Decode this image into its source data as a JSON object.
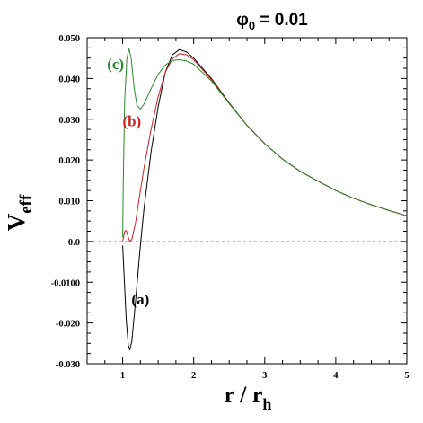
{
  "chart_data": {
    "type": "line",
    "title": {
      "symbol": "φ",
      "sub": "0",
      "rest": " = 0.01"
    },
    "xlabel": {
      "main": "r / r",
      "sub": "h"
    },
    "ylabel": {
      "main": "V",
      "sub": "eff"
    },
    "xlim": [
      0.5,
      5.0
    ],
    "ylim": [
      -0.03,
      0.05
    ],
    "x_ticks": [
      {
        "v": 1,
        "label": "1"
      },
      {
        "v": 2,
        "label": "2"
      },
      {
        "v": 3,
        "label": "3"
      },
      {
        "v": 4,
        "label": "4"
      },
      {
        "v": 5,
        "label": "5"
      }
    ],
    "y_ticks": [
      {
        "v": 0.05,
        "label": "0.050"
      },
      {
        "v": 0.04,
        "label": "0.040"
      },
      {
        "v": 0.03,
        "label": "0.030"
      },
      {
        "v": 0.02,
        "label": "0.020"
      },
      {
        "v": 0.01,
        "label": "0.010"
      },
      {
        "v": 0.0,
        "label": "0.0"
      },
      {
        "v": -0.01,
        "label": "-0.0100"
      },
      {
        "v": -0.02,
        "label": "-0.020"
      },
      {
        "v": -0.03,
        "label": "-0.030"
      }
    ],
    "zero_line": true,
    "series": [
      {
        "name": "(a)",
        "color": "#000000",
        "label_at": [
          1.25,
          -0.0155
        ],
        "points": [
          [
            1.0,
            -0.001
          ],
          [
            1.02,
            -0.008
          ],
          [
            1.05,
            -0.019
          ],
          [
            1.08,
            -0.0255
          ],
          [
            1.1,
            -0.0266
          ],
          [
            1.13,
            -0.0245
          ],
          [
            1.18,
            -0.015
          ],
          [
            1.25,
            -0.001
          ],
          [
            1.3,
            0.008
          ],
          [
            1.4,
            0.022
          ],
          [
            1.5,
            0.033
          ],
          [
            1.6,
            0.0415
          ],
          [
            1.7,
            0.0458
          ],
          [
            1.8,
            0.0471
          ],
          [
            1.9,
            0.0465
          ],
          [
            2.0,
            0.045
          ],
          [
            2.25,
            0.04
          ],
          [
            2.5,
            0.034
          ],
          [
            2.75,
            0.0285
          ],
          [
            3.0,
            0.024
          ],
          [
            3.25,
            0.0202
          ],
          [
            3.5,
            0.0172
          ],
          [
            3.75,
            0.0148
          ],
          [
            4.0,
            0.0125
          ],
          [
            4.25,
            0.0106
          ],
          [
            4.5,
            0.009
          ],
          [
            4.75,
            0.0076
          ],
          [
            5.0,
            0.0063
          ]
        ]
      },
      {
        "name": "(b)",
        "color": "#cc2222",
        "label_at": [
          1.13,
          0.0283
        ],
        "points": [
          [
            1.0,
            0.0
          ],
          [
            1.03,
            0.0025
          ],
          [
            1.05,
            0.0027
          ],
          [
            1.08,
            0.001
          ],
          [
            1.1,
            0.0
          ],
          [
            1.13,
            0.0005
          ],
          [
            1.18,
            0.0045
          ],
          [
            1.25,
            0.0125
          ],
          [
            1.3,
            0.018
          ],
          [
            1.4,
            0.0275
          ],
          [
            1.5,
            0.0355
          ],
          [
            1.6,
            0.0415
          ],
          [
            1.7,
            0.0448
          ],
          [
            1.8,
            0.0461
          ],
          [
            1.9,
            0.0458
          ],
          [
            2.0,
            0.0446
          ],
          [
            2.25,
            0.0397
          ],
          [
            2.5,
            0.0339
          ],
          [
            2.75,
            0.0285
          ],
          [
            3.0,
            0.024
          ],
          [
            3.25,
            0.0202
          ],
          [
            3.5,
            0.0172
          ],
          [
            3.75,
            0.0148
          ],
          [
            4.0,
            0.0125
          ],
          [
            4.25,
            0.0106
          ],
          [
            4.5,
            0.009
          ],
          [
            4.75,
            0.0076
          ],
          [
            5.0,
            0.0063
          ]
        ]
      },
      {
        "name": "(c)",
        "color": "#2a8a2a",
        "label_at": [
          0.9,
          0.0423
        ],
        "points": [
          [
            1.0,
            0.001
          ],
          [
            1.01,
            0.015
          ],
          [
            1.03,
            0.035
          ],
          [
            1.06,
            0.045
          ],
          [
            1.09,
            0.0473
          ],
          [
            1.12,
            0.045
          ],
          [
            1.16,
            0.038
          ],
          [
            1.2,
            0.0335
          ],
          [
            1.25,
            0.0325
          ],
          [
            1.3,
            0.0337
          ],
          [
            1.4,
            0.0375
          ],
          [
            1.5,
            0.041
          ],
          [
            1.6,
            0.0433
          ],
          [
            1.7,
            0.0444
          ],
          [
            1.8,
            0.0446
          ],
          [
            1.9,
            0.0443
          ],
          [
            2.0,
            0.0435
          ],
          [
            2.25,
            0.0394
          ],
          [
            2.5,
            0.0338
          ],
          [
            2.75,
            0.0285
          ],
          [
            3.0,
            0.024
          ],
          [
            3.25,
            0.0202
          ],
          [
            3.5,
            0.0172
          ],
          [
            3.75,
            0.0148
          ],
          [
            4.0,
            0.0125
          ],
          [
            4.25,
            0.0106
          ],
          [
            4.5,
            0.009
          ],
          [
            4.75,
            0.0076
          ],
          [
            5.0,
            0.0063
          ]
        ]
      }
    ]
  }
}
